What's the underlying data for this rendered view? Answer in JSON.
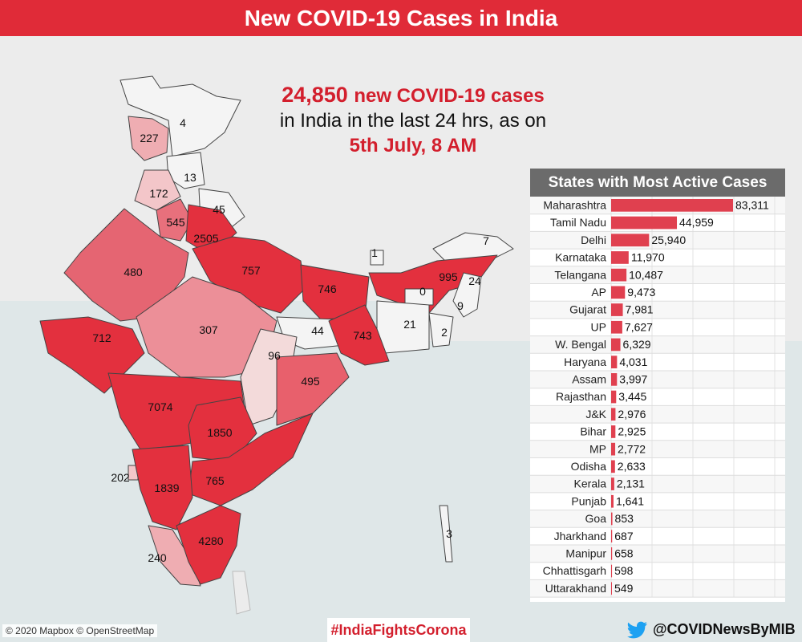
{
  "header": {
    "title": "New COVID-19 Cases in India"
  },
  "headline": {
    "count": "24,850",
    "line1_rest": "new COVID-19 cases",
    "line2": "in India in the last 24 hrs, as on",
    "line3": "5th July, 8 AM"
  },
  "colors": {
    "red": "#e02b38",
    "grey": "#6b6b6b"
  },
  "map": {
    "state_values": [
      "4",
      "227",
      "13",
      "172",
      "45",
      "545",
      "2505",
      "480",
      "757",
      "746",
      "1",
      "7",
      "995",
      "24",
      "0",
      "9",
      "21",
      "2",
      "712",
      "307",
      "44",
      "743",
      "96",
      "495",
      "7074",
      "1850",
      "202",
      "1839",
      "765",
      "3",
      "4280",
      "240"
    ]
  },
  "chart_data": {
    "type": "bar",
    "title": "States with Most Active Cases",
    "categories": [
      "Maharashtra",
      "Tamil Nadu",
      "Delhi",
      "Karnataka",
      "Telangana",
      "AP",
      "Gujarat",
      "UP",
      "W. Bengal",
      "Haryana",
      "Assam",
      "Rajasthan",
      "J&K",
      "Bihar",
      "MP",
      "Odisha",
      "Kerala",
      "Punjab",
      "Goa",
      "Jharkhand",
      "Manipur",
      "Chhattisgarh",
      "Uttarakhand"
    ],
    "values": [
      83311,
      44959,
      25940,
      11970,
      10487,
      9473,
      7981,
      7627,
      6329,
      4031,
      3997,
      3445,
      2976,
      2925,
      2772,
      2633,
      2131,
      1641,
      853,
      687,
      658,
      598,
      549
    ],
    "value_labels": [
      "83,311",
      "44,959",
      "25,940",
      "11,970",
      "10,487",
      "9,473",
      "7,981",
      "7,627",
      "6,329",
      "4,031",
      "3,997",
      "3,445",
      "2,976",
      "2,925",
      "2,772",
      "2,633",
      "2,131",
      "1,641",
      "853",
      "687",
      "658",
      "598",
      "549"
    ],
    "orientation": "horizontal",
    "color": "#e0404f"
  },
  "footer": {
    "credit": "© 2020 Mapbox © OpenStreetMap",
    "hashtag": "#IndiaFightsCorona",
    "handle": "@COVIDNewsByMIB"
  }
}
